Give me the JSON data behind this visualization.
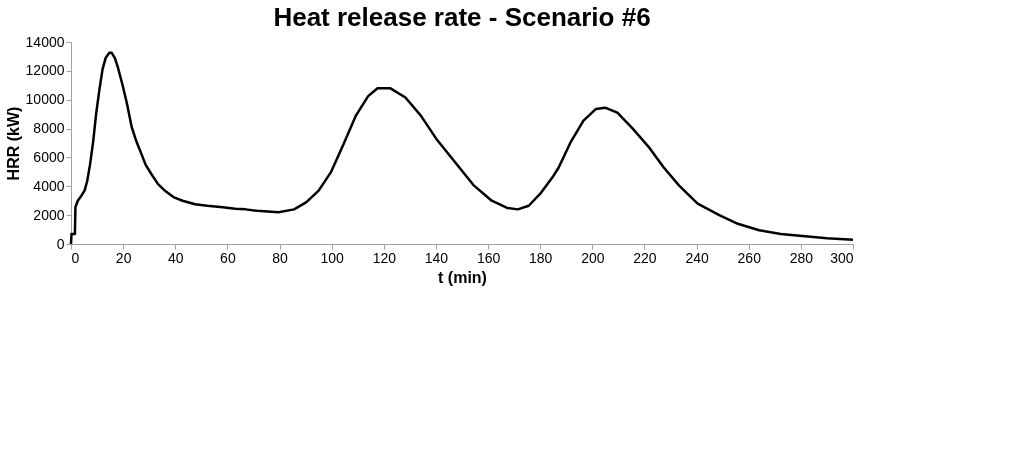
{
  "chart_data": {
    "type": "line",
    "title": "Heat release rate - Scenario #6",
    "xlabel": "t (min)",
    "ylabel": "HRR (kW)",
    "xlim": [
      0,
      300
    ],
    "xticks": [
      0,
      20,
      40,
      60,
      80,
      100,
      120,
      140,
      160,
      180,
      200,
      220,
      240,
      260,
      280,
      300
    ],
    "ylim": [
      0,
      14000
    ],
    "yticks": [
      0,
      2000,
      4000,
      6000,
      8000,
      10000,
      12000,
      14000
    ],
    "grid": false,
    "marker": "none",
    "line_style": "solid",
    "series": [
      {
        "color": "#000000",
        "x": [
          0,
          0.2,
          1.5,
          1.7,
          2.6,
          4,
          5.2,
          6.2,
          7.3,
          8.5,
          9.7,
          10.9,
          12.1,
          13.3,
          14.7,
          15.6,
          16.8,
          17.9,
          19.8,
          21.5,
          23.3,
          25.1,
          26.9,
          28.6,
          31,
          33.4,
          36.3,
          39.3,
          42.8,
          47.6,
          52.3,
          58.2,
          63,
          67,
          71.4,
          79.6,
          85.6,
          90.3,
          95,
          99.8,
          104.5,
          109.3,
          114,
          117.6,
          122.4,
          128.3,
          134.2,
          140.1,
          147.2,
          154.3,
          161.4,
          167.3,
          171.4,
          175.6,
          180.3,
          185,
          187.1,
          191.8,
          196.6,
          201.3,
          204.9,
          209.6,
          215.5,
          221.5,
          227.4,
          233.3,
          240.4,
          248.7,
          255.8,
          264,
          272.3,
          280.6,
          290,
          300
        ],
        "values": [
          0,
          700,
          700,
          2550,
          3000,
          3350,
          3700,
          4350,
          5500,
          7100,
          9100,
          10700,
          12100,
          12900,
          13250,
          13250,
          12900,
          12300,
          11000,
          9700,
          8100,
          7100,
          6300,
          5500,
          4800,
          4150,
          3650,
          3250,
          3000,
          2750,
          2650,
          2550,
          2450,
          2400,
          2300,
          2200,
          2400,
          2900,
          3700,
          5000,
          6900,
          8900,
          10250,
          10800,
          10800,
          10150,
          8900,
          7300,
          5700,
          4100,
          3000,
          2500,
          2400,
          2650,
          3550,
          4700,
          5300,
          7100,
          8550,
          9350,
          9450,
          9100,
          8000,
          6750,
          5300,
          4050,
          2800,
          2000,
          1400,
          950,
          700,
          550,
          400,
          300
        ]
      }
    ]
  }
}
